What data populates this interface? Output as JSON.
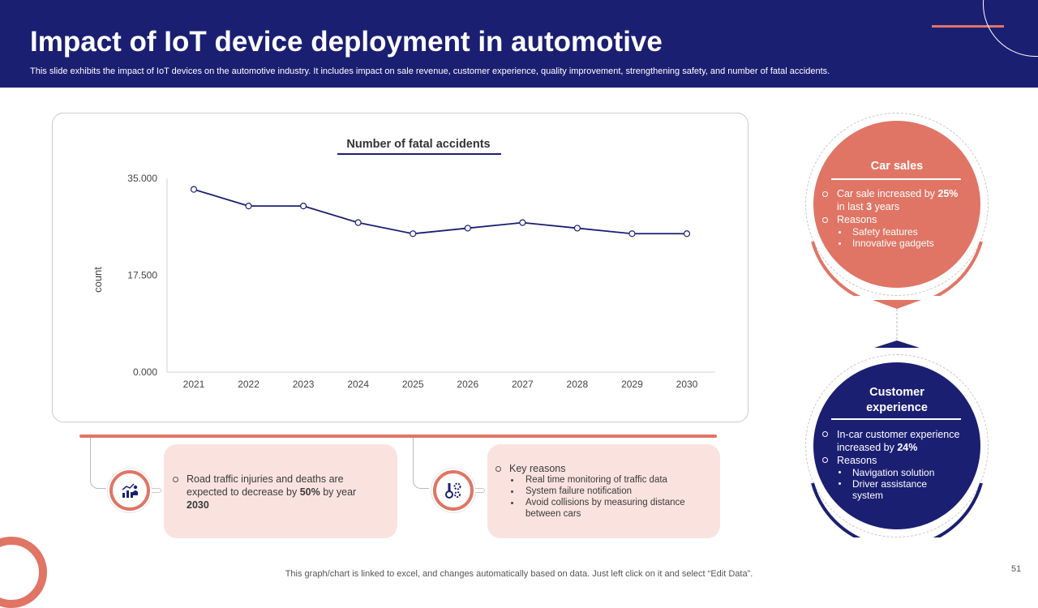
{
  "header": {
    "title": "Impact of IoT device deployment in automotive",
    "subtitle": "This slide exhibits the impact of IoT devices on the automotive industry. It includes impact on sale revenue, customer experience, quality improvement, strengthening safety, and number of fatal accidents."
  },
  "chart_data": {
    "type": "line",
    "title": "Number of fatal accidents",
    "xlabel": "",
    "ylabel": "count",
    "categories": [
      "2021",
      "2022",
      "2023",
      "2024",
      "2025",
      "2026",
      "2027",
      "2028",
      "2029",
      "2030"
    ],
    "series": [
      {
        "name": "Number of fatal accidents",
        "values": [
          33000,
          30000,
          30000,
          27000,
          25000,
          26000,
          27000,
          26000,
          25000,
          25000
        ]
      }
    ],
    "ylim": [
      0,
      35000
    ],
    "yticks": [
      0,
      17500,
      35000
    ],
    "ytick_labels": [
      "0.000",
      "17.500",
      "35.000"
    ],
    "grid": false,
    "legend": "none",
    "line_color": "#1b1f72"
  },
  "boxes": {
    "left": {
      "icon": "chart-analytics-icon",
      "text_pre": "Road traffic injuries and deaths are expected to decrease by ",
      "text_bold1": "50%",
      "text_mid": " by year ",
      "text_bold2": "2030"
    },
    "right": {
      "icon": "gear-settings-icon",
      "heading": "Key reasons",
      "items": [
        "Real time monitoring of traffic data",
        "System failure notification",
        "Avoid collisions by measuring distance between cars"
      ]
    }
  },
  "circles": {
    "car_sales": {
      "title": "Car sales",
      "line1_pre": "Car sale increased by ",
      "line1_bold": "25%",
      "line2_pre": "in last ",
      "line2_bold": "3",
      "line2_post": " years",
      "reasons_label": "Reasons",
      "reasons": [
        "Safety features",
        "Innovative gadgets"
      ],
      "color": "#e07565"
    },
    "customer_experience": {
      "title": "Customer experience",
      "line1": "In-car customer experience",
      "line2_pre": "increased by ",
      "line2_bold": "24%",
      "reasons_label": "Reasons",
      "reasons": [
        "Navigation solution",
        "Driver assistance system"
      ],
      "color": "#1b1f72"
    }
  },
  "footer": {
    "note": "This graph/chart is linked to excel,  and changes automatically based on data. Just left click on it and select “Edit Data”.",
    "page_number": "51"
  },
  "colors": {
    "navy": "#1b1f72",
    "coral": "#e07565",
    "pink": "#fae3df"
  }
}
